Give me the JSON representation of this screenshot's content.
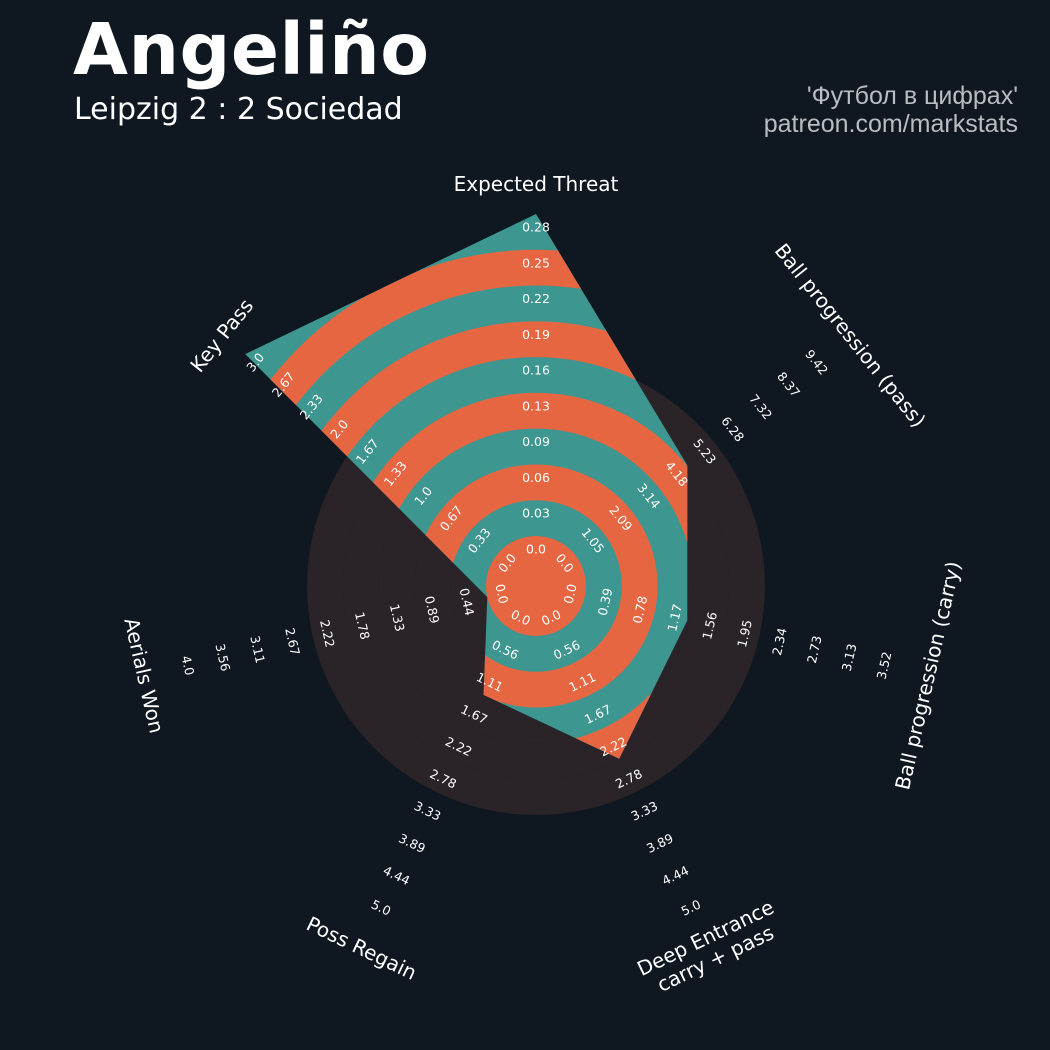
{
  "header": {
    "title": "Angeliño",
    "subtitle": "Leipzig 2 : 2 Sociedad",
    "credit_line1": "'Футбол в цифрах'",
    "credit_line2": "patreon.com/markstats"
  },
  "colors": {
    "background": "#0f1820",
    "ring": "#2a2428",
    "fill_primary": "#3d968f",
    "fill_secondary": "#e66642",
    "label": "#ffffff"
  },
  "chart_data": {
    "type": "radar",
    "params": [
      {
        "label": "Expected Threat",
        "value": 0.28,
        "ticks": [
          "0.0",
          "0.03",
          "0.06",
          "0.09",
          "0.13",
          "0.16",
          "0.19",
          "0.22",
          "0.25",
          "0.28"
        ]
      },
      {
        "label": "Ball progression (pass)",
        "value": 4.2,
        "ticks": [
          "0.0",
          "1.05",
          "2.09",
          "3.14",
          "4.18",
          "5.23",
          "6.28",
          "7.32",
          "8.37",
          "9.42"
        ]
      },
      {
        "label": "Ball progression (carry)",
        "value": 1.15,
        "ticks": [
          "0.0",
          "0.39",
          "0.78",
          "1.17",
          "1.56",
          "1.95",
          "2.34",
          "2.73",
          "3.13",
          "3.52"
        ]
      },
      {
        "label": "Deep Entrance\ncarry + pass",
        "value": 2.2,
        "ticks": [
          "0.0",
          "0.56",
          "1.11",
          "1.67",
          "2.22",
          "2.78",
          "3.33",
          "3.89",
          "4.44",
          "5.0"
        ]
      },
      {
        "label": "Poss Regain",
        "value": 1.1,
        "ticks": [
          "0.0",
          "0.56",
          "1.11",
          "1.67",
          "2.22",
          "2.78",
          "3.33",
          "3.89",
          "4.44",
          "5.0"
        ]
      },
      {
        "label": "Aerials Won",
        "value": 0.0,
        "ticks": [
          "0.0",
          "0.44",
          "0.89",
          "1.33",
          "1.78",
          "2.22",
          "2.67",
          "3.11",
          "3.56",
          "4.0"
        ]
      },
      {
        "label": "Key Pass",
        "value": 3.0,
        "ticks": [
          "0.0",
          "0.33",
          "0.67",
          "1.0",
          "1.33",
          "1.67",
          "2.0",
          "2.33",
          "2.67",
          "3.0"
        ]
      }
    ]
  }
}
